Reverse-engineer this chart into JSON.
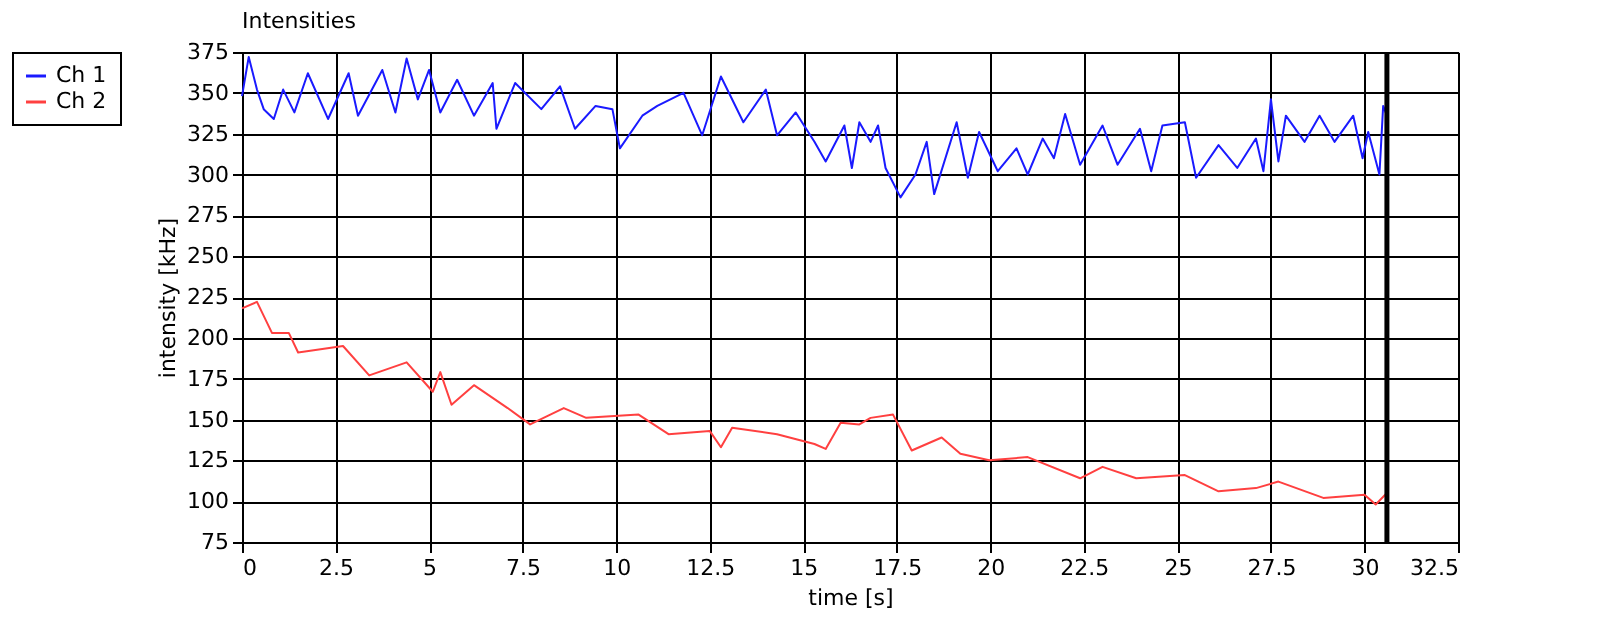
{
  "chart_data": {
    "type": "line",
    "title": "Intensities",
    "xlabel": "time [s]",
    "ylabel": "intensity [kHz]",
    "xlim": [
      0,
      32.5
    ],
    "xticks": [
      0,
      2.5,
      5,
      7.5,
      10,
      12.5,
      15,
      17.5,
      20,
      22.5,
      25,
      27.5,
      30,
      32.5
    ],
    "ylim": [
      75,
      375
    ],
    "yticks": [
      75,
      100,
      125,
      150,
      175,
      200,
      225,
      250,
      275,
      300,
      325,
      350,
      375
    ],
    "grid": true,
    "legend": "top left",
    "marker": "none",
    "line_style": "solid",
    "ref_lines": [
      {
        "axis": "x",
        "value": 30.6,
        "color": "#000000"
      }
    ],
    "series": [
      {
        "name": "Ch 1",
        "color": "#1a1aff",
        "x": [
          0,
          0.18,
          0.4,
          0.58,
          0.85,
          1.1,
          1.4,
          1.76,
          2.3,
          2.85,
          3.1,
          3.75,
          4.1,
          4.4,
          4.7,
          5.0,
          5.3,
          5.75,
          6.2,
          6.7,
          6.8,
          7.3,
          8.0,
          8.5,
          8.9,
          9.45,
          9.9,
          10.1,
          10.7,
          11.1,
          11.8,
          12.3,
          12.8,
          13.4,
          14.0,
          14.3,
          14.8,
          15.3,
          15.6,
          16.1,
          16.3,
          16.5,
          16.8,
          17.0,
          17.2,
          17.6,
          18.0,
          18.3,
          18.5,
          19.1,
          19.4,
          19.7,
          20.2,
          20.7,
          21.0,
          21.4,
          21.7,
          22.0,
          22.4,
          23.0,
          23.4,
          24.0,
          24.3,
          24.6,
          25.2,
          25.5,
          26.1,
          26.6,
          27.1,
          27.3,
          27.5,
          27.7,
          27.9,
          28.4,
          28.8,
          29.2,
          29.7,
          29.95,
          30.1,
          30.4,
          30.5,
          30.6
        ],
        "values": [
          348,
          372,
          352,
          340,
          334,
          352,
          338,
          362,
          334,
          362,
          336,
          364,
          338,
          371,
          346,
          364,
          338,
          358,
          336,
          356,
          328,
          356,
          340,
          354,
          328,
          342,
          340,
          316,
          336,
          342,
          350,
          324,
          360,
          332,
          352,
          324,
          338,
          320,
          308,
          330,
          304,
          332,
          320,
          330,
          304,
          286,
          300,
          320,
          288,
          332,
          298,
          326,
          302,
          316,
          300,
          322,
          310,
          337,
          306,
          330,
          306,
          328,
          302,
          330,
          332,
          298,
          318,
          304,
          322,
          302,
          346,
          308,
          336,
          320,
          336,
          320,
          336,
          310,
          326,
          300,
          342,
          336
        ]
      },
      {
        "name": "Ch 2",
        "color": "#ff4040",
        "x": [
          0,
          0.4,
          0.8,
          1.25,
          1.5,
          2.7,
          3.4,
          4.4,
          5.1,
          5.3,
          5.6,
          6.2,
          7.1,
          7.7,
          8.6,
          9.2,
          10.6,
          11.4,
          12.5,
          12.8,
          13.1,
          14.3,
          15.3,
          15.6,
          16.0,
          16.5,
          16.8,
          17.4,
          17.9,
          18.7,
          19.2,
          19.97,
          21.0,
          22.4,
          23.0,
          23.9,
          25.2,
          26.1,
          27.1,
          27.7,
          28.9,
          30.0,
          30.3,
          30.6
        ],
        "values": [
          218,
          222,
          203,
          203,
          191,
          195,
          177,
          185,
          167,
          179,
          159,
          171,
          157,
          147,
          157,
          151,
          153,
          141,
          143,
          133,
          145,
          141,
          135,
          132,
          148,
          147,
          151,
          153,
          131,
          139,
          129,
          125,
          127,
          114,
          121,
          114,
          116,
          106,
          108,
          112,
          102,
          104,
          98,
          105
        ]
      }
    ]
  }
}
